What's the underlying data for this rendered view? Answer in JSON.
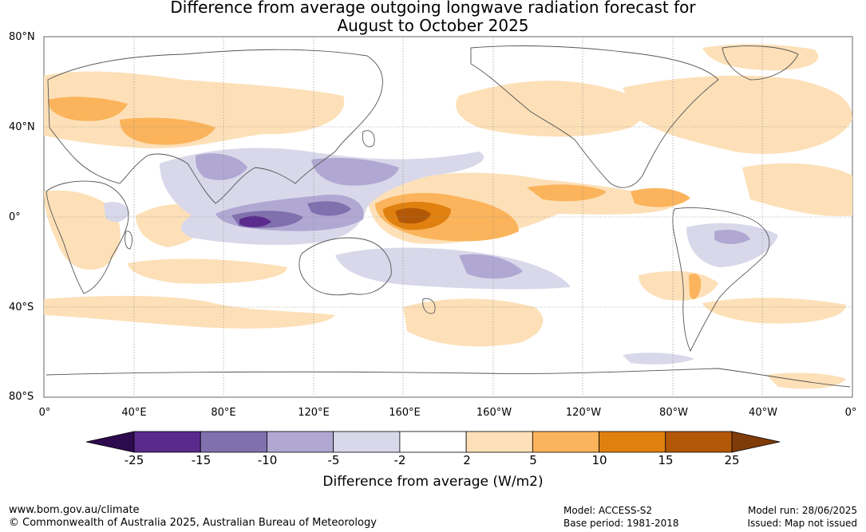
{
  "title_line1": "Difference from average outgoing longwave radiation forecast for",
  "title_line2": "August to October 2025",
  "lat_labels": [
    "80°N",
    "40°N",
    "0°",
    "40°S",
    "80°S"
  ],
  "lon_labels": [
    "0°",
    "40°E",
    "80°E",
    "120°E",
    "160°E",
    "160°W",
    "120°W",
    "80°W",
    "40°W",
    "0°"
  ],
  "colorbar": {
    "title": "Difference from average (W/m2)",
    "ticks": [
      "-25",
      "-15",
      "-10",
      "-5",
      "-2",
      "2",
      "5",
      "10",
      "15",
      "25"
    ],
    "colors": [
      "#2e0a4e",
      "#5a2a8c",
      "#8070ae",
      "#b0a8d2",
      "#d8d8ea",
      "#ffffff",
      "#fde0b8",
      "#fbb45c",
      "#e0800f",
      "#b35806",
      "#7f3b08"
    ]
  },
  "footer": {
    "website": "www.bom.gov.au/climate",
    "copyright": "© Commonwealth of Australia 2025, Australian Bureau of Meteorology",
    "model": "Model: ACCESS-S2",
    "base_period": "Base period: 1981-2018",
    "model_run": "Model run: 28/06/2025",
    "issued": "Issued: Map not issued"
  }
}
